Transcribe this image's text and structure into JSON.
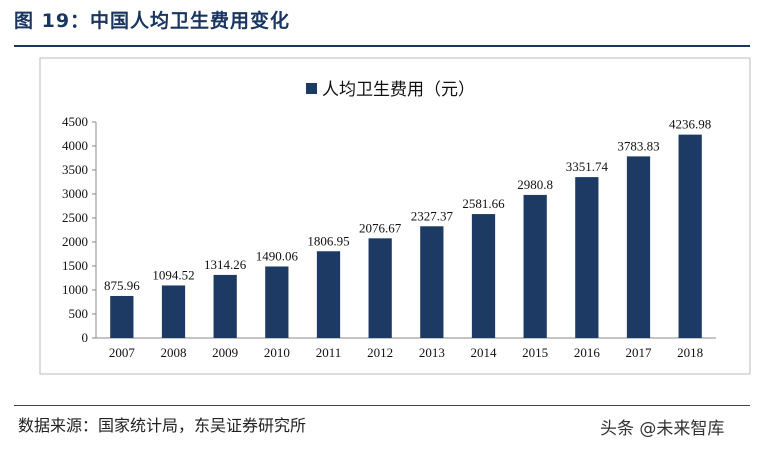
{
  "header": {
    "title": "图 19：中国人均卫生费用变化"
  },
  "footer": {
    "source": "数据来源：国家统计局，东吴证券研究所",
    "watermark": "头条 @未来智库"
  },
  "colors": {
    "bar": "#1c3a63",
    "title": "#1a3560"
  },
  "chart_data": {
    "type": "bar",
    "title": "",
    "xlabel": "",
    "ylabel": "",
    "ylim": [
      0,
      4500
    ],
    "yticks": [
      0,
      500,
      1000,
      1500,
      2000,
      2500,
      3000,
      3500,
      4000,
      4500
    ],
    "grid": false,
    "legend_position": "top-center",
    "categories": [
      "2007",
      "2008",
      "2009",
      "2010",
      "2011",
      "2012",
      "2013",
      "2014",
      "2015",
      "2016",
      "2017",
      "2018"
    ],
    "series": [
      {
        "name": "人均卫生费用（元）",
        "values": [
          875.96,
          1094.52,
          1314.26,
          1490.06,
          1806.95,
          2076.67,
          2327.37,
          2581.66,
          2980.8,
          3351.74,
          3783.83,
          4236.98
        ],
        "labels": [
          "875.96",
          "1094.52",
          "1314.26",
          "1490.06",
          "1806.95",
          "2076.67",
          "2327.37",
          "2581.66",
          "2980.8",
          "3351.74",
          "3783.83",
          "4236.98"
        ]
      }
    ]
  }
}
